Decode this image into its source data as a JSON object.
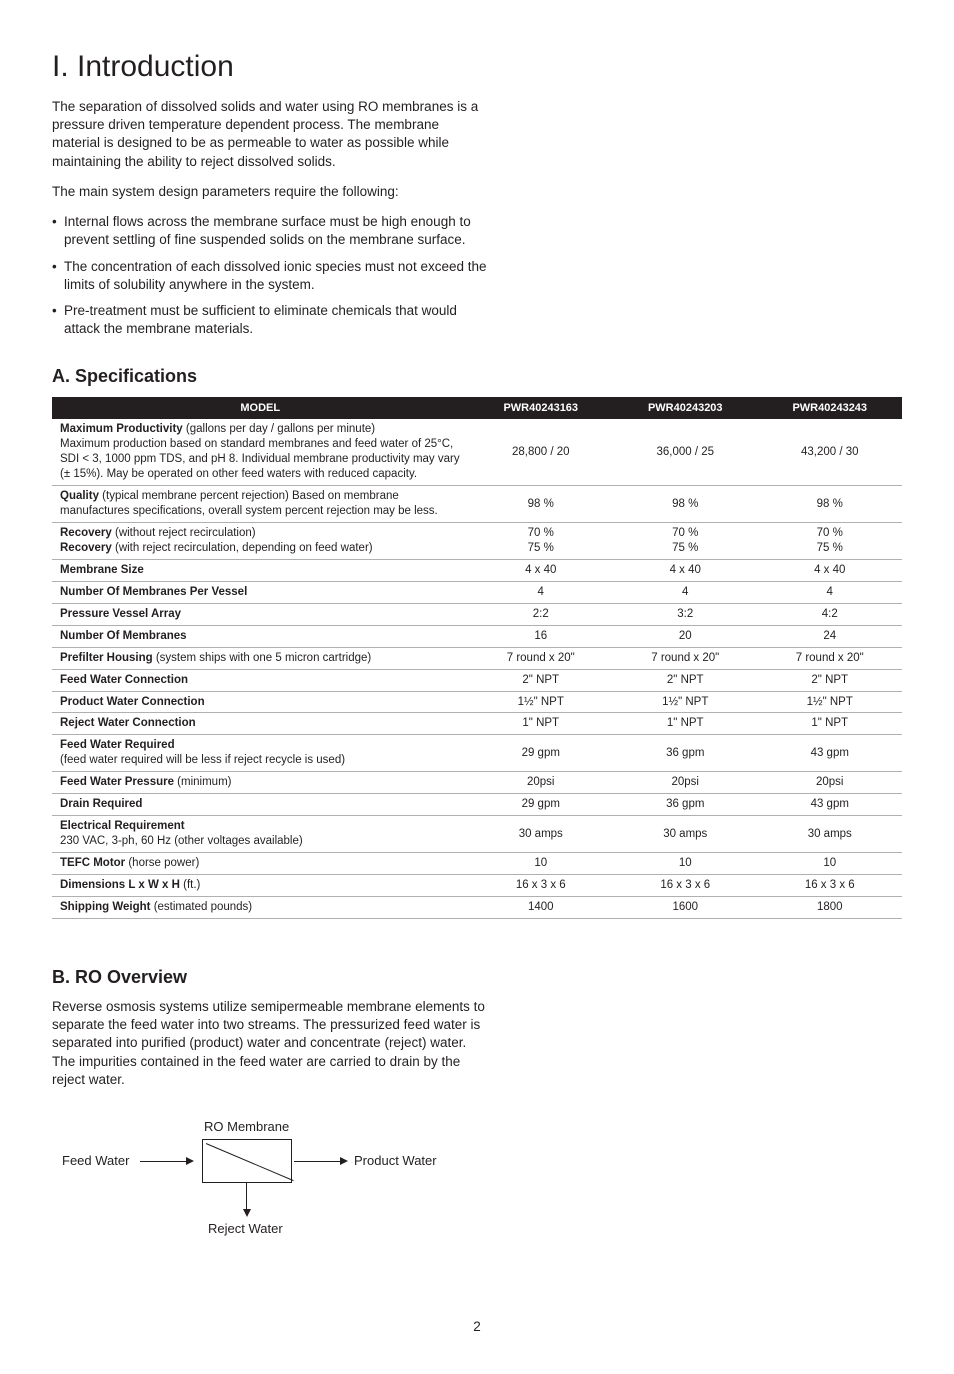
{
  "title": "I. Introduction",
  "intro_p1": "The separation of dissolved solids and water using RO membranes is a pressure driven temperature dependent process. The membrane material is designed to be as permeable to water as possible while maintaining the ability to reject dissolved solids.",
  "intro_p2": "The main system design parameters require the following:",
  "bullets": [
    "Internal flows across the membrane surface must be high enough to prevent settling of fine suspended solids on the membrane surface.",
    "The concentration of each dissolved ionic species must not exceed the limits of solubility anywhere in the system.",
    "Pre-treatment must be sufficient to eliminate chemicals that would attack the membrane materials."
  ],
  "specs_heading": "A. Specifications",
  "table": {
    "header": [
      "MODEL",
      "PWR40243163",
      "PWR40243203",
      "PWR40243243"
    ],
    "rows": [
      {
        "label_html": "<span class='b'>Maximum Productivity</span> (gallons per day / gallons per minute)<br>Maximum production based on standard membranes and feed water of 25°C, SDI < 3, 1000 ppm TDS, and pH 8. Individual membrane productivity may vary (± 15%). May be operated on other feed waters with reduced capacity.",
        "c": [
          "28,800 / 20",
          "36,000 / 25",
          "43,200 / 30"
        ]
      },
      {
        "label_html": "<span class='b'>Quality</span> (typical membrane percent rejection) Based on membrane manufactures specifications, overall system percent rejection may be less.",
        "c": [
          "98 %",
          "98 %",
          "98 %"
        ]
      },
      {
        "label_html": "<span class='b'>Recovery</span> (without reject recirculation)<br><span class='b'>Recovery</span> (with reject recirculation, depending on feed water)",
        "c": [
          "70 %<br>75 %",
          "70 %<br>75 %",
          "70 %<br>75 %"
        ]
      },
      {
        "label_html": "<span class='b'>Membrane Size</span>",
        "c": [
          "4 x 40",
          "4 x 40",
          "4 x 40"
        ]
      },
      {
        "label_html": "<span class='b'>Number Of Membranes Per Vessel</span>",
        "c": [
          "4",
          "4",
          "4"
        ]
      },
      {
        "label_html": "<span class='b'>Pressure Vessel Array</span>",
        "c": [
          "2:2",
          "3:2",
          "4:2"
        ]
      },
      {
        "label_html": "<span class='b'>Number Of Membranes</span>",
        "c": [
          "16",
          "20",
          "24"
        ]
      },
      {
        "label_html": "<span class='b'>Prefilter Housing</span> (system ships with one 5 micron cartridge)",
        "c": [
          "7 round x 20\"",
          "7 round x 20\"",
          "7 round x 20\""
        ]
      },
      {
        "label_html": "<span class='b'>Feed Water Connection</span>",
        "c": [
          "2\" NPT",
          "2\" NPT",
          "2\" NPT"
        ]
      },
      {
        "label_html": "<span class='b'>Product Water Connection</span>",
        "c": [
          "1½\" NPT",
          "1½\" NPT",
          "1½\" NPT"
        ]
      },
      {
        "label_html": "<span class='b'>Reject Water Connection</span>",
        "c": [
          "1\" NPT",
          "1\" NPT",
          "1\" NPT"
        ]
      },
      {
        "label_html": "<span class='b'>Feed Water Required</span><br>(feed water required will be less if reject recycle is used)",
        "c": [
          "29 gpm",
          "36 gpm",
          "43 gpm"
        ]
      },
      {
        "label_html": "<span class='b'>Feed Water Pressure</span> (minimum)",
        "c": [
          "20psi",
          "20psi",
          "20psi"
        ]
      },
      {
        "label_html": "<span class='b'>Drain Required</span>",
        "c": [
          "29 gpm",
          "36 gpm",
          "43 gpm"
        ]
      },
      {
        "label_html": "<span class='b'>Electrical Requirement</span><br>230 VAC, 3-ph, 60 Hz (other voltages available)",
        "c": [
          "30 amps",
          "30 amps",
          "30 amps"
        ]
      },
      {
        "label_html": "<span class='b'>TEFC Motor</span> (horse power)",
        "c": [
          "10",
          "10",
          "10"
        ]
      },
      {
        "label_html": "<span class='b'>Dimensions L x W x H</span> (ft.)",
        "c": [
          "16 x 3 x 6",
          "16 x 3 x 6",
          "16 x 3 x 6"
        ]
      },
      {
        "label_html": "<span class='b'>Shipping Weight</span> (estimated pounds)",
        "c": [
          "1400",
          "1600",
          "1800"
        ]
      }
    ]
  },
  "overview_heading": "B. RO Overview",
  "overview_p": "Reverse osmosis systems utilize semipermeable membrane elements to separate the feed water into two streams. The pressurized feed water is separated into purified (product) water and concentrate (reject) water. The impurities contained in the feed water are carried to drain by the reject water.",
  "diagram": {
    "ro_membrane": "RO Membrane",
    "feed_water": "Feed Water",
    "product_water": "Product Water",
    "reject_water": "Reject Water"
  },
  "page_number": "2"
}
